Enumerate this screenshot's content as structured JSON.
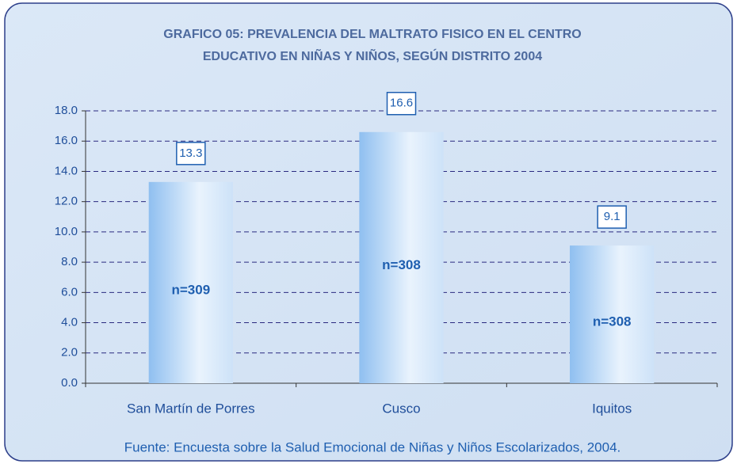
{
  "chart_data": {
    "type": "bar",
    "title": "GRAFICO 05:  PREVALENCIA DEL MALTRATO FISICO EN EL CENTRO",
    "subtitle": "EDUCATIVO EN NIÑAS Y NIÑOS, SEGÚN DISTRITO 2004",
    "categories": [
      "San Martín de Porres",
      "Cusco",
      "Iquitos"
    ],
    "values": [
      13.3,
      16.6,
      9.1
    ],
    "annotations": [
      "n=309",
      "n=308",
      "n=308"
    ],
    "color": "#9cc7f2",
    "ylim": [
      0,
      18
    ],
    "yticks": [
      {
        "value": 0,
        "label": "0.0"
      },
      {
        "value": 2,
        "label": "2.0"
      },
      {
        "value": 4,
        "label": "4.0"
      },
      {
        "value": 6,
        "label": "6.0"
      },
      {
        "value": 8,
        "label": "8.0"
      },
      {
        "value": 10,
        "label": "10.0"
      },
      {
        "value": 12,
        "label": "12.0"
      },
      {
        "value": 14,
        "label": "14.0"
      },
      {
        "value": 16,
        "label": "16.0"
      },
      {
        "value": 18,
        "label": "18.0"
      }
    ],
    "grid": true,
    "source": "Fuente: Encuesta sobre la Salud Emocional de Niñas y Niños Escolarizados, 2004."
  }
}
